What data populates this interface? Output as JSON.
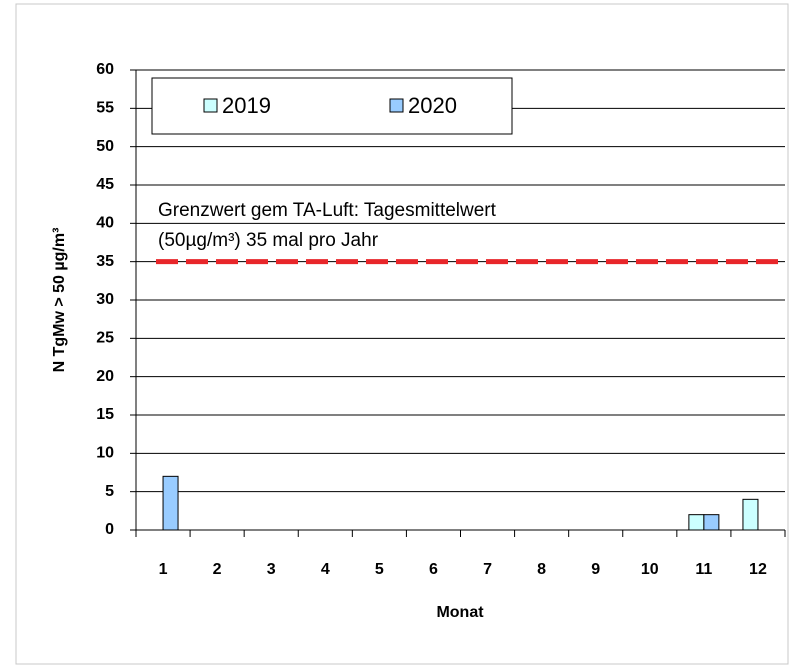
{
  "chart_data": {
    "type": "bar",
    "categories": [
      "1",
      "2",
      "3",
      "4",
      "5",
      "6",
      "7",
      "8",
      "9",
      "10",
      "11",
      "12"
    ],
    "series": [
      {
        "name": "2019",
        "color": "#ccffff",
        "values": [
          0,
          0,
          0,
          0,
          0,
          0,
          0,
          0,
          0,
          0,
          2,
          4
        ]
      },
      {
        "name": "2020",
        "color": "#99ccff",
        "values": [
          7,
          0,
          0,
          0,
          0,
          0,
          0,
          0,
          0,
          0,
          2,
          0
        ]
      }
    ],
    "ylim": [
      0,
      60
    ],
    "yticks": [
      0,
      5,
      10,
      15,
      20,
      25,
      30,
      35,
      40,
      45,
      50,
      55,
      60
    ],
    "grid": true,
    "legend": "top-left",
    "y_label": "N TgMw > 50 µg/m³",
    "x_label": "Monat",
    "reference_line": {
      "value": 35,
      "color": "#e8262a"
    },
    "annotations": [
      "Grenzwert gem TA-Luft: Tagesmittelwert",
      "(50µg/m³)  35 mal pro Jahr"
    ]
  }
}
